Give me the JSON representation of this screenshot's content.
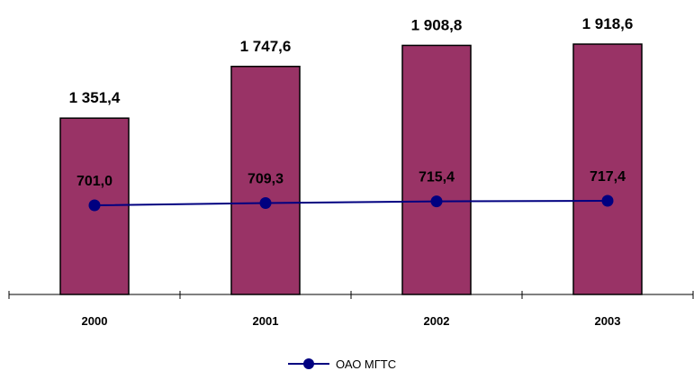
{
  "chart_data": {
    "type": "bar",
    "categories": [
      "2000",
      "2001",
      "2002",
      "2003"
    ],
    "series": [
      {
        "type": "bar",
        "values": [
          1351.4,
          1747.6,
          1908.8,
          1918.6
        ],
        "value_labels": [
          "1 351,4",
          "1 747,6",
          "1 908,8",
          "1 918,6"
        ],
        "color": "#993366"
      },
      {
        "type": "line",
        "name": "ОАО МГТС",
        "values": [
          701.0,
          709.3,
          715.4,
          717.4
        ],
        "value_labels": [
          "701,0",
          "709,3",
          "715,4",
          "717,4"
        ],
        "color": "#000080"
      }
    ],
    "title": "",
    "xlabel": "",
    "ylabel": "",
    "ylim": [
      0,
      2040
    ],
    "grid": false,
    "legend": "bottom-center"
  }
}
